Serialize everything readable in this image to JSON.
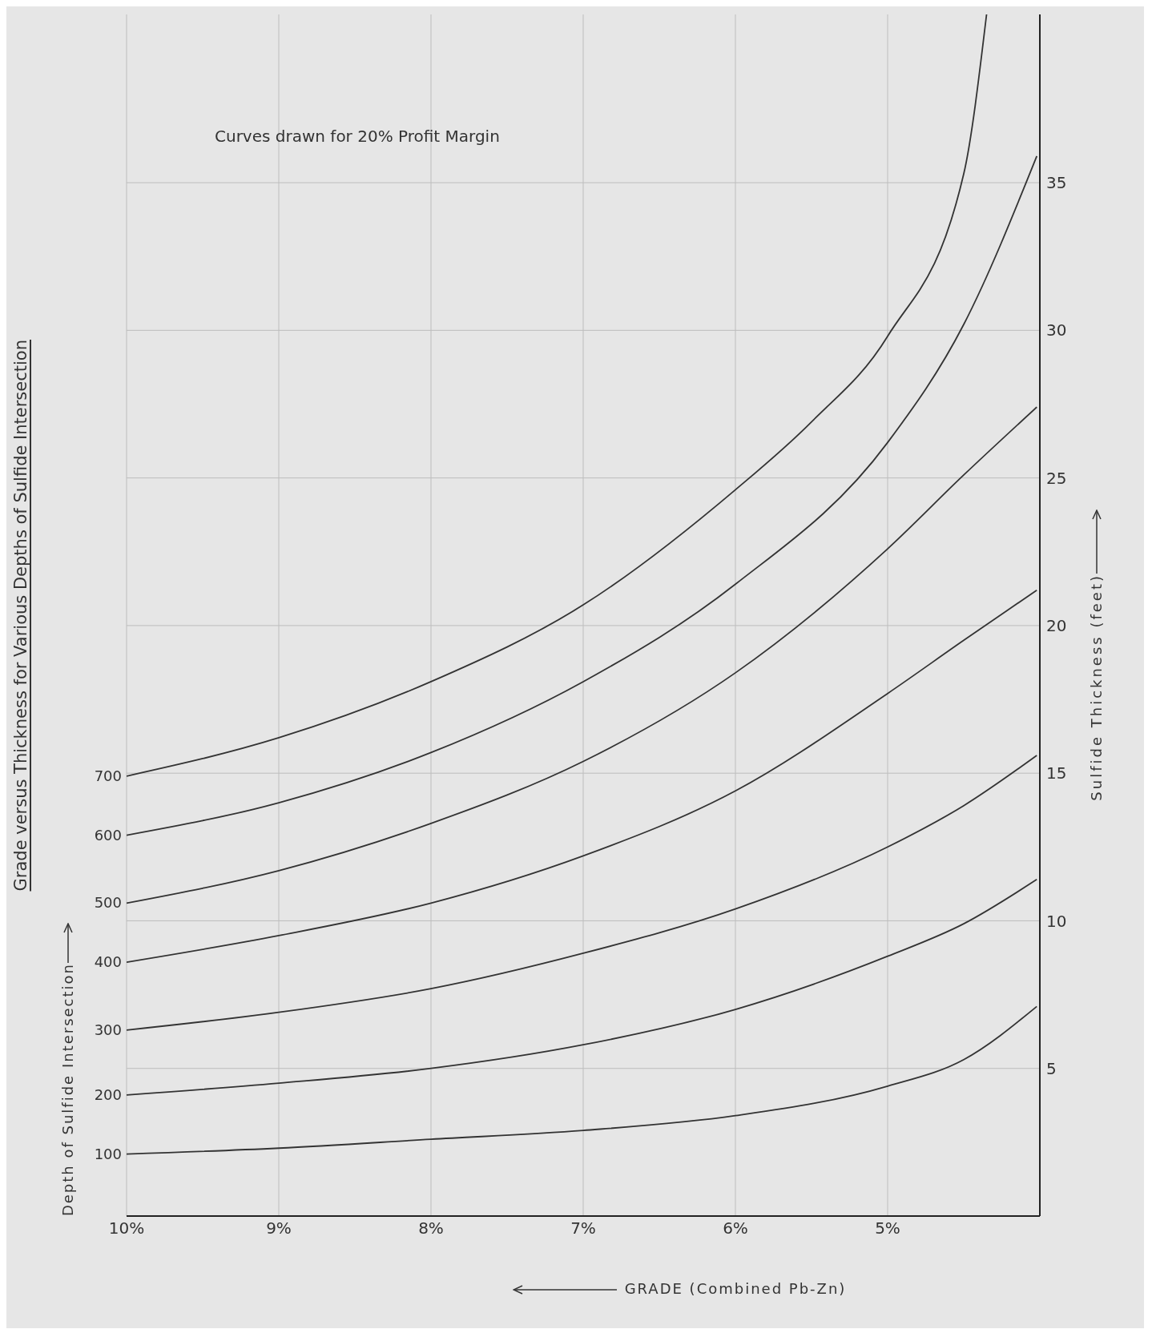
{
  "chart_data": {
    "type": "line",
    "title": "Grade versus Thickness for Various Depths of Sulfide Intersection",
    "legend_title": "Depth of Sulfide Intersection",
    "xlabel": "GRADE (Combined Pb-Zn)",
    "ylabel": "Sulfide Thickness (feet)",
    "annotations": [
      "Curves drawn for 20% Profit Margin"
    ],
    "xlim": [
      10,
      4
    ],
    "xticks": [
      {
        "value": 10,
        "label": "10%"
      },
      {
        "value": 9,
        "label": "9%"
      },
      {
        "value": 8,
        "label": "8%"
      },
      {
        "value": 7,
        "label": "7%"
      },
      {
        "value": 6,
        "label": "6%"
      },
      {
        "value": 5,
        "label": "5%"
      }
    ],
    "ylim": [
      0,
      40.7
    ],
    "yticks": [
      5,
      10,
      15,
      20,
      25,
      30,
      35
    ],
    "grid": true,
    "marker": "none",
    "line_style": "solid",
    "series": [
      {
        "name": "700",
        "color": "#333333",
        "x": [
          10,
          9,
          8,
          7,
          6,
          5.5,
          5,
          4.5,
          4.35
        ],
        "values": [
          14.9,
          16.2,
          18.1,
          20.7,
          24.6,
          26.9,
          29.8,
          35.3,
          40.7
        ]
      },
      {
        "name": "600",
        "color": "#333333",
        "x": [
          10,
          9,
          8,
          7,
          6,
          5,
          4.5,
          4.02
        ],
        "values": [
          12.9,
          14.0,
          15.7,
          18.1,
          21.4,
          26.2,
          30.2,
          35.9
        ]
      },
      {
        "name": "500",
        "color": "#333333",
        "x": [
          10,
          9,
          8,
          7,
          6,
          5,
          4.5,
          4.02
        ],
        "values": [
          10.6,
          11.7,
          13.3,
          15.4,
          18.4,
          22.6,
          25.1,
          27.4
        ]
      },
      {
        "name": "400",
        "color": "#333333",
        "x": [
          10,
          9,
          8,
          7,
          6,
          5,
          4.5,
          4.02
        ],
        "values": [
          8.6,
          9.5,
          10.6,
          12.2,
          14.4,
          17.7,
          19.5,
          21.2
        ]
      },
      {
        "name": "300",
        "color": "#333333",
        "x": [
          10,
          9,
          8,
          7,
          6,
          5,
          4.5,
          4.02
        ],
        "values": [
          6.3,
          6.9,
          7.7,
          8.9,
          10.4,
          12.5,
          13.9,
          15.6
        ]
      },
      {
        "name": "200",
        "color": "#333333",
        "x": [
          10,
          9,
          8,
          7,
          6,
          5,
          4.5,
          4.02
        ],
        "values": [
          4.1,
          4.5,
          5.0,
          5.8,
          7.0,
          8.8,
          9.9,
          11.4
        ]
      },
      {
        "name": "100",
        "color": "#333333",
        "x": [
          10,
          9,
          8,
          7,
          6,
          5,
          4.5,
          4.02
        ],
        "values": [
          2.1,
          2.3,
          2.6,
          2.9,
          3.4,
          4.4,
          5.3,
          7.1
        ]
      }
    ]
  }
}
